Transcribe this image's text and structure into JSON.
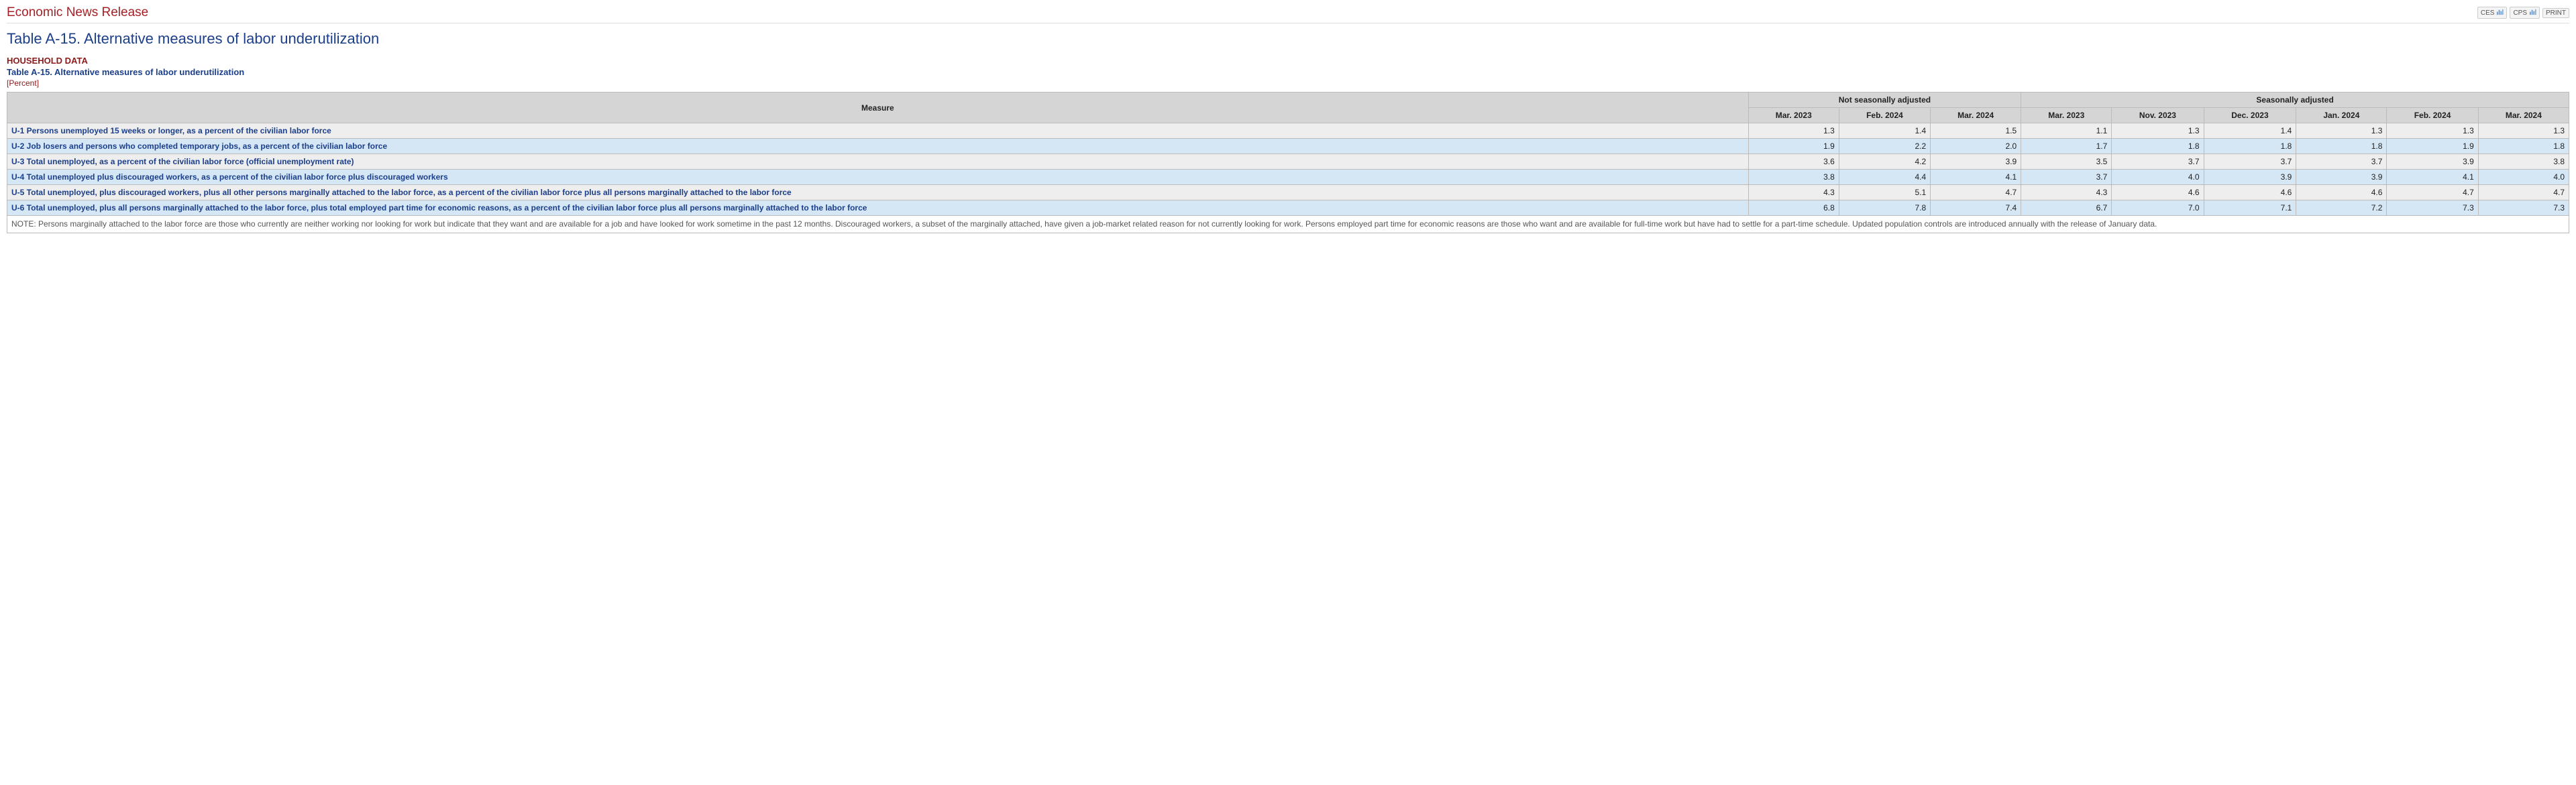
{
  "header": {
    "release_title": "Economic News Release",
    "links": {
      "ces": "CES",
      "cps": "CPS",
      "print": "PRINT"
    }
  },
  "page_title": "Table A-15. Alternative measures of labor underutilization",
  "subhead": {
    "household": "HOUSEHOLD DATA",
    "subtitle": "Table A-15. Alternative measures of labor underutilization",
    "unit": "[Percent]"
  },
  "table": {
    "type": "table",
    "columns": {
      "measure_label": "Measure",
      "group_nsa": "Not seasonally adjusted",
      "group_sa": "Seasonally adjusted",
      "nsa": [
        "Mar. 2023",
        "Feb. 2024",
        "Mar. 2024"
      ],
      "sa": [
        "Mar. 2023",
        "Nov. 2023",
        "Dec. 2023",
        "Jan. 2024",
        "Feb. 2024",
        "Mar. 2024"
      ]
    },
    "rows": [
      {
        "measure": "U-1 Persons unemployed 15 weeks or longer, as a percent of the civilian labor force",
        "nsa": [
          "1.3",
          "1.4",
          "1.5"
        ],
        "sa": [
          "1.1",
          "1.3",
          "1.4",
          "1.3",
          "1.3",
          "1.3"
        ]
      },
      {
        "measure": "U-2 Job losers and persons who completed temporary jobs, as a percent of the civilian labor force",
        "nsa": [
          "1.9",
          "2.2",
          "2.0"
        ],
        "sa": [
          "1.7",
          "1.8",
          "1.8",
          "1.8",
          "1.9",
          "1.8"
        ]
      },
      {
        "measure": "U-3 Total unemployed, as a percent of the civilian labor force (official unemployment rate)",
        "nsa": [
          "3.6",
          "4.2",
          "3.9"
        ],
        "sa": [
          "3.5",
          "3.7",
          "3.7",
          "3.7",
          "3.9",
          "3.8"
        ]
      },
      {
        "measure": "U-4 Total unemployed plus discouraged workers, as a percent of the civilian labor force plus discouraged workers",
        "nsa": [
          "3.8",
          "4.4",
          "4.1"
        ],
        "sa": [
          "3.7",
          "4.0",
          "3.9",
          "3.9",
          "4.1",
          "4.0"
        ]
      },
      {
        "measure": "U-5 Total unemployed, plus discouraged workers, plus all other persons marginally attached to the labor force, as a percent of the civilian labor force plus all persons marginally attached to the labor force",
        "nsa": [
          "4.3",
          "5.1",
          "4.7"
        ],
        "sa": [
          "4.3",
          "4.6",
          "4.6",
          "4.6",
          "4.7",
          "4.7"
        ]
      },
      {
        "measure": "U-6 Total unemployed, plus all persons marginally attached to the labor force, plus total employed part time for economic reasons, as a percent of the civilian labor force plus all persons marginally attached to the labor force",
        "nsa": [
          "6.8",
          "7.8",
          "7.4"
        ],
        "sa": [
          "6.7",
          "7.0",
          "7.1",
          "7.2",
          "7.3",
          "7.3"
        ]
      }
    ],
    "note": "NOTE: Persons marginally attached to the labor force are those who currently are neither working nor looking for work but indicate that they want and are available for a job and have looked for work sometime in the past 12 months. Discouraged workers, a subset of the marginally attached, have given a job-market related reason for not currently looking for work. Persons employed part time for economic reasons are those who want and are available for full-time work but have had to settle for a part-time schedule. Updated population controls are introduced annually with the release of January data.",
    "colors": {
      "header_bg": "#d5d5d5",
      "odd_row_bg": "#eeeeee",
      "even_row_bg": "#d5e6f5",
      "border": "#bbbbbb",
      "measure_text": "#1b3f8b",
      "title_text": "#1b3f8b",
      "release_text": "#a62126"
    }
  }
}
